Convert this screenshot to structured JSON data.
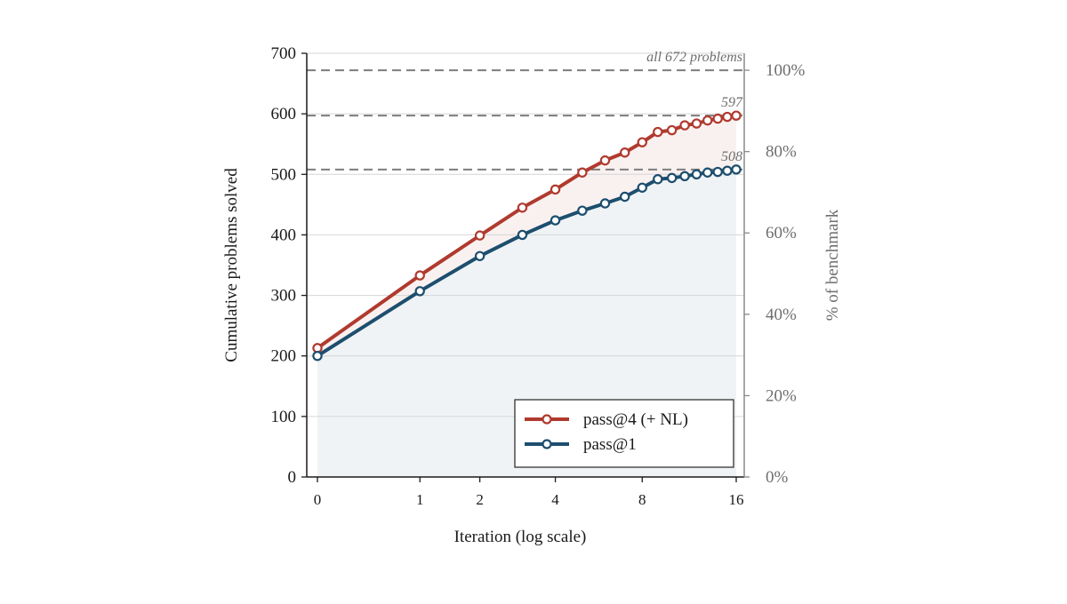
{
  "chart_data": {
    "type": "line",
    "title": "",
    "xlabel": "Iteration  (log scale)",
    "ylabel": "Cumulative problems solved",
    "ylabel_right": "% of benchmark",
    "x_scale": "log",
    "x_ticks": [
      0,
      1,
      2,
      4,
      8,
      16
    ],
    "ylim": [
      0,
      700
    ],
    "y_ticks": [
      0,
      100,
      200,
      300,
      400,
      500,
      600,
      700
    ],
    "right_ticks": [
      {
        "value": 0,
        "label": "0%"
      },
      {
        "value": 134.4,
        "label": "20%"
      },
      {
        "value": 268.8,
        "label": "40%"
      },
      {
        "value": 403.2,
        "label": "60%"
      },
      {
        "value": 537.6,
        "label": "80%"
      },
      {
        "value": 672,
        "label": "100%"
      }
    ],
    "grid": true,
    "legend_position": "bottom-right",
    "reference_lines": [
      {
        "value": 672,
        "label": "all 672 problems"
      },
      {
        "value": 597,
        "label": "597"
      },
      {
        "value": 508,
        "label": "508"
      }
    ],
    "series": [
      {
        "name": "pass@4 (+ NL)",
        "color": "#b03a2e",
        "x": [
          0,
          1,
          2,
          3,
          4,
          5,
          6,
          7,
          8,
          9,
          10,
          11,
          12,
          13,
          14,
          15,
          16
        ],
        "y": [
          213,
          333,
          399,
          445,
          475,
          503,
          523,
          536,
          553,
          570,
          573,
          581,
          584,
          589,
          592,
          595,
          597
        ]
      },
      {
        "name": "pass@1",
        "color": "#1d4e6e",
        "x": [
          0,
          1,
          2,
          3,
          4,
          5,
          6,
          7,
          8,
          9,
          10,
          11,
          12,
          13,
          14,
          15,
          16
        ],
        "y": [
          200,
          307,
          365,
          400,
          424,
          440,
          452,
          463,
          478,
          492,
          494,
          497,
          500,
          503,
          504,
          506,
          508
        ]
      }
    ]
  }
}
